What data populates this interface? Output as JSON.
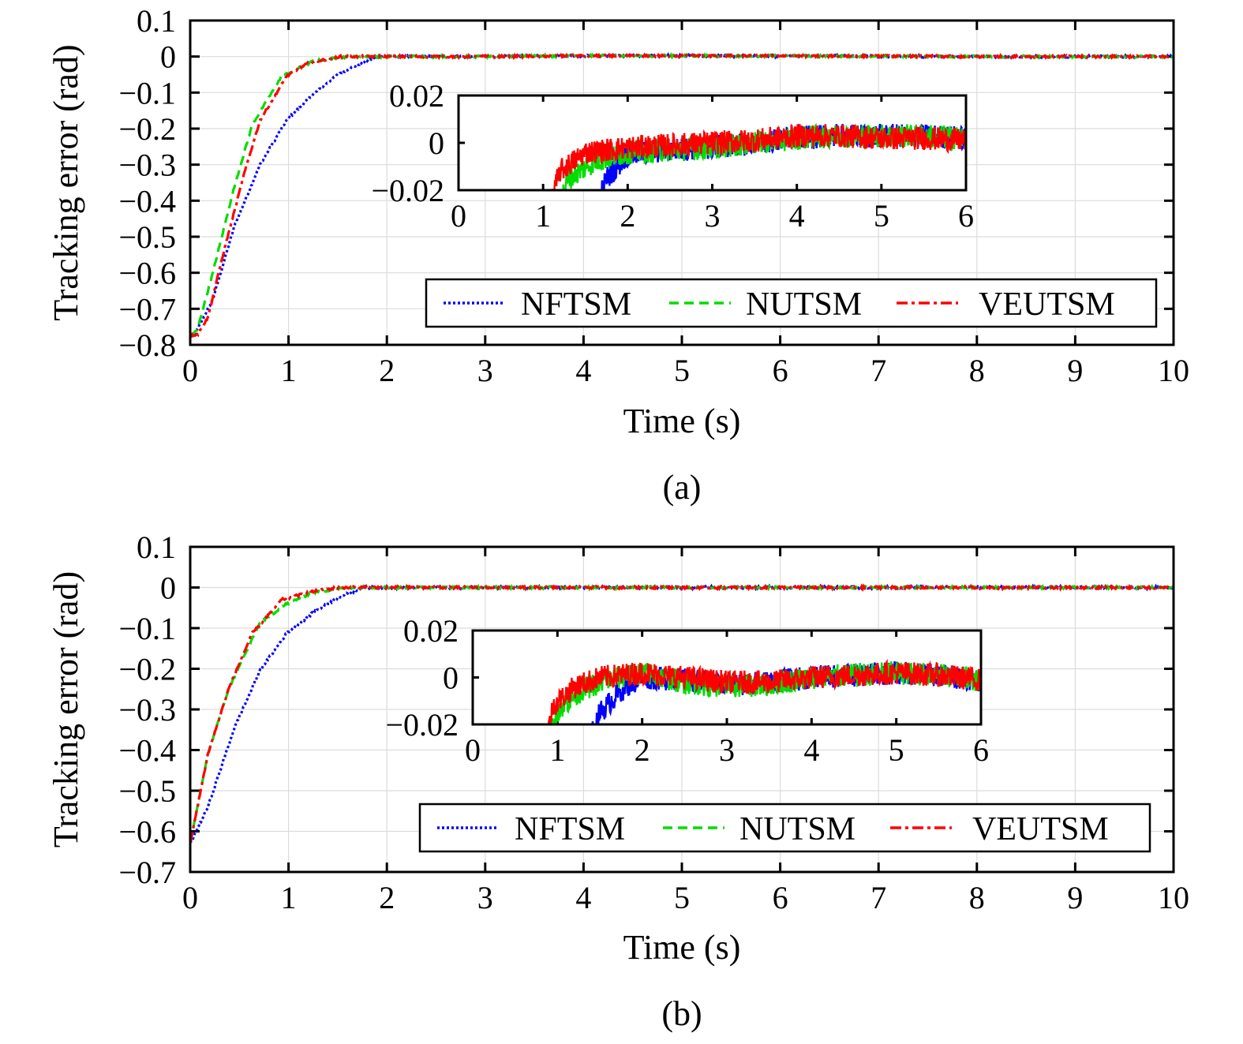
{
  "chart_data": [
    {
      "type": "line",
      "panel_label": "(a)",
      "xlabel": "Time (s)",
      "ylabel": "Tracking error (rad)",
      "xlim": [
        0,
        10
      ],
      "ylim": [
        -0.8,
        0.1
      ],
      "xticks": [
        "0",
        "1",
        "2",
        "3",
        "4",
        "5",
        "6",
        "7",
        "8",
        "9",
        "10"
      ],
      "yticks": [
        "0.1",
        "0",
        "−0.1",
        "−0.2",
        "−0.3",
        "−0.4",
        "−0.5",
        "−0.6",
        "−0.7",
        "−0.8"
      ],
      "grid": true,
      "legend_position": "lower-right",
      "series": [
        {
          "name": "NFTSM",
          "color": "#0000ff",
          "style": "dotted",
          "x": [
            0,
            0.05,
            0.23,
            0.45,
            0.71,
            0.98,
            1.25,
            1.52,
            1.78,
            1.92,
            2.5,
            3,
            4,
            5,
            6,
            7,
            8,
            9,
            10
          ],
          "y": [
            -0.775,
            -0.77,
            -0.674,
            -0.47,
            -0.3,
            -0.177,
            -0.105,
            -0.046,
            -0.013,
            0,
            0,
            0,
            0.002,
            0.002,
            0.002,
            0.001,
            0,
            0,
            0
          ]
        },
        {
          "name": "NUTSM",
          "color": "#00dd00",
          "style": "dashed",
          "x": [
            0,
            0.07,
            0.23,
            0.45,
            0.63,
            0.93,
            1.25,
            1.6,
            2,
            3,
            4,
            5,
            6,
            7,
            8,
            9,
            10
          ],
          "y": [
            -0.775,
            -0.76,
            -0.6,
            -0.36,
            -0.19,
            -0.055,
            -0.013,
            0,
            0,
            0,
            0.002,
            0.002,
            0.002,
            0.001,
            0,
            0,
            0
          ]
        },
        {
          "name": "VEUTSM",
          "color": "#ff0000",
          "style": "dash-dot",
          "x": [
            0,
            0.08,
            0.18,
            0.34,
            0.55,
            0.71,
            0.98,
            1.2,
            1.52,
            2,
            3,
            4,
            5,
            6,
            7,
            8,
            9,
            10
          ],
          "y": [
            -0.775,
            -0.77,
            -0.724,
            -0.543,
            -0.324,
            -0.177,
            -0.055,
            -0.018,
            0,
            0,
            0,
            0.002,
            0.002,
            0.002,
            0.001,
            0,
            0,
            0
          ]
        }
      ],
      "inset": {
        "xlim": [
          0,
          6
        ],
        "ylim": [
          -0.02,
          0.02
        ],
        "xticks": [
          "0",
          "1",
          "2",
          "3",
          "4",
          "5",
          "6"
        ],
        "yticks": [
          "0.02",
          "0",
          "−0.02"
        ],
        "noise_amplitude": 0.005,
        "series": [
          {
            "name": "NFTSM",
            "x": [
              1.6,
              1.75,
              2,
              2.5,
              3,
              3.5,
              4,
              4.5,
              5,
              5.5,
              6
            ],
            "y": [
              -0.03,
              -0.015,
              -0.005,
              -0.003,
              -0.002,
              0,
              0.002,
              0.003,
              0.003,
              0.003,
              0.002
            ]
          },
          {
            "name": "NUTSM",
            "x": [
              1.15,
              1.3,
              1.6,
              2,
              2.5,
              3,
              3.5,
              4,
              4.5,
              5,
              5.5,
              6
            ],
            "y": [
              -0.03,
              -0.015,
              -0.008,
              -0.004,
              -0.003,
              -0.002,
              0,
              0.002,
              0.003,
              0.003,
              0.003,
              0.002
            ]
          },
          {
            "name": "VEUTSM",
            "x": [
              1.05,
              1.2,
              1.5,
              2,
              2.5,
              3,
              3.5,
              4,
              4.5,
              5,
              5.5,
              6
            ],
            "y": [
              -0.03,
              -0.012,
              -0.004,
              -0.002,
              -0.001,
              0,
              0.001,
              0.003,
              0.003,
              0.002,
              0.002,
              0.001
            ]
          }
        ]
      }
    },
    {
      "type": "line",
      "panel_label": "(b)",
      "xlabel": "Time (s)",
      "ylabel": "Tracking error (rad)",
      "xlim": [
        0,
        10
      ],
      "ylim": [
        -0.7,
        0.1
      ],
      "xticks": [
        "0",
        "1",
        "2",
        "3",
        "4",
        "5",
        "6",
        "7",
        "8",
        "9",
        "10"
      ],
      "yticks": [
        "0.1",
        "0",
        "−0.1",
        "−0.2",
        "−0.3",
        "−0.4",
        "−0.5",
        "−0.6",
        "−0.7"
      ],
      "grid": true,
      "legend_position": "lower-right",
      "series": [
        {
          "name": "NFTSM",
          "color": "#0000ff",
          "style": "dotted",
          "x": [
            0,
            0.18,
            0.45,
            0.71,
            0.98,
            1.25,
            1.52,
            1.65,
            1.78,
            2.5,
            3,
            4,
            5,
            6,
            7,
            8,
            9,
            10
          ],
          "y": [
            -0.63,
            -0.54,
            -0.345,
            -0.204,
            -0.113,
            -0.062,
            -0.023,
            -0.01,
            0,
            0,
            0,
            0,
            0,
            0,
            0,
            0,
            0,
            0
          ]
        },
        {
          "name": "NUTSM",
          "color": "#00dd00",
          "style": "dashed",
          "x": [
            0,
            0.18,
            0.39,
            0.71,
            0.98,
            1.25,
            1.6,
            2,
            3,
            4,
            5,
            6,
            7,
            8,
            9,
            10
          ],
          "y": [
            -0.63,
            -0.41,
            -0.25,
            -0.087,
            -0.04,
            -0.012,
            0,
            0,
            0,
            0,
            0,
            0,
            0,
            0,
            0,
            0
          ]
        },
        {
          "name": "VEUTSM",
          "color": "#ff0000",
          "style": "dash-dot",
          "x": [
            0,
            0.18,
            0.39,
            0.63,
            0.93,
            1.25,
            1.52,
            2,
            3,
            4,
            5,
            6,
            7,
            8,
            9,
            10
          ],
          "y": [
            -0.63,
            -0.41,
            -0.25,
            -0.113,
            -0.03,
            -0.01,
            0,
            0,
            0,
            0,
            0,
            0,
            0,
            0,
            0,
            0
          ]
        }
      ],
      "inset": {
        "xlim": [
          0,
          6
        ],
        "ylim": [
          -0.02,
          0.02
        ],
        "xticks": [
          "0",
          "1",
          "2",
          "3",
          "4",
          "5",
          "6"
        ],
        "yticks": [
          "0.02",
          "0",
          "−0.02"
        ],
        "noise_amplitude": 0.005,
        "series": [
          {
            "name": "NFTSM",
            "x": [
              1.35,
              1.5,
              1.8,
              2,
              2.5,
              3,
              3.5,
              4,
              4.5,
              5,
              5.5,
              6
            ],
            "y": [
              -0.03,
              -0.015,
              -0.004,
              0,
              -0.001,
              -0.003,
              -0.002,
              0,
              0.001,
              0.002,
              0.001,
              -0.001
            ]
          },
          {
            "name": "NUTSM",
            "x": [
              0.88,
              1.0,
              1.3,
              1.6,
              2,
              2.5,
              3,
              3.5,
              4,
              4.5,
              5,
              5.5,
              6
            ],
            "y": [
              -0.03,
              -0.014,
              -0.005,
              -0.001,
              0.002,
              -0.002,
              -0.004,
              -0.003,
              0,
              0.001,
              0.002,
              0.001,
              -0.001
            ]
          },
          {
            "name": "VEUTSM",
            "x": [
              0.85,
              0.95,
              1.2,
              1.5,
              2,
              2.5,
              3,
              3.5,
              4,
              4.5,
              5,
              5.5,
              6
            ],
            "y": [
              -0.03,
              -0.012,
              -0.004,
              0,
              0.002,
              0,
              -0.002,
              -0.002,
              0,
              0.001,
              0.002,
              0.001,
              -0.001
            ]
          }
        ]
      }
    }
  ]
}
